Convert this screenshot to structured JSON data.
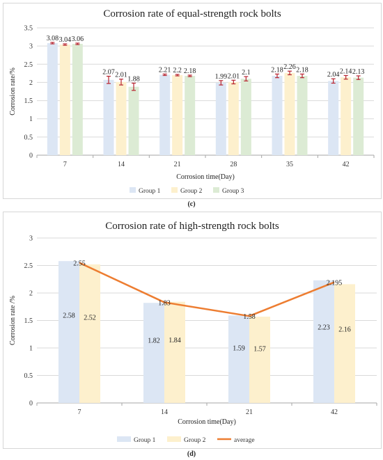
{
  "chart_data": [
    {
      "type": "bar",
      "title": "Corrosion rate of equal-strength rock bolts",
      "xlabel": "Corrosion time(Day)",
      "ylabel": "Corrosion rate/%",
      "ylim": [
        0,
        3.5
      ],
      "yticks": [
        "0",
        "0.5",
        "1",
        "1.5",
        "2",
        "2.5",
        "3",
        "3.5"
      ],
      "categories": [
        "7",
        "14",
        "21",
        "28",
        "35",
        "42"
      ],
      "legend_position": "bottom",
      "series": [
        {
          "name": "Group 1",
          "color": "#dce6f4",
          "values": [
            3.08,
            2.07,
            2.21,
            1.99,
            2.18,
            2.04
          ],
          "errors": [
            0.02,
            0.1,
            0.02,
            0.06,
            0.05,
            0.06
          ],
          "labels": [
            "3.08",
            "2.07",
            "2.21",
            "1.99",
            "2.18",
            "2.04"
          ]
        },
        {
          "name": "Group 2",
          "color": "#fdf0cd",
          "values": [
            3.04,
            2.01,
            2.2,
            2.01,
            2.26,
            2.14
          ],
          "errors": [
            0.02,
            0.08,
            0.02,
            0.05,
            0.05,
            0.05
          ],
          "labels": [
            "3.04",
            "2.01",
            "2.2",
            "2.01",
            "2.26",
            "2.14"
          ]
        },
        {
          "name": "Group 3",
          "color": "#dcebd4",
          "values": [
            3.06,
            1.88,
            2.18,
            2.1,
            2.18,
            2.13
          ],
          "errors": [
            0.02,
            0.1,
            0.02,
            0.06,
            0.05,
            0.05
          ],
          "labels": [
            "3.06",
            "1.88",
            "2.18",
            "2.1",
            "2.18",
            "2.13"
          ]
        }
      ],
      "errorbar_color": "#b8232f",
      "caption": "(c)"
    },
    {
      "type": "bar",
      "title": "Corrosion rate of high-strength rock bolts",
      "xlabel": "Corrosion time(Day)",
      "ylabel": "Corrosion rate /%",
      "ylim": [
        0,
        3
      ],
      "yticks": [
        "0",
        "0.5",
        "1",
        "1.5",
        "2",
        "2.5",
        "3"
      ],
      "categories": [
        "7",
        "14",
        "21",
        "42"
      ],
      "legend_position": "bottom",
      "series": [
        {
          "name": "Group 1",
          "color": "#dce6f4",
          "values": [
            2.58,
            1.82,
            1.59,
            2.23
          ],
          "labels": [
            "2.58",
            "1.82",
            "1.59",
            "2.23"
          ]
        },
        {
          "name": "Group 2",
          "color": "#fdf0cd",
          "values": [
            2.52,
            1.84,
            1.57,
            2.16
          ],
          "labels": [
            "2.52",
            "1.84",
            "1.57",
            "2.16"
          ]
        }
      ],
      "line": {
        "name": "average",
        "color": "#ed7d31",
        "values": [
          2.55,
          1.83,
          1.58,
          2.195
        ],
        "labels": [
          "2.55",
          "1.83",
          "1.58",
          "2.195"
        ]
      },
      "caption": "(d)"
    }
  ]
}
